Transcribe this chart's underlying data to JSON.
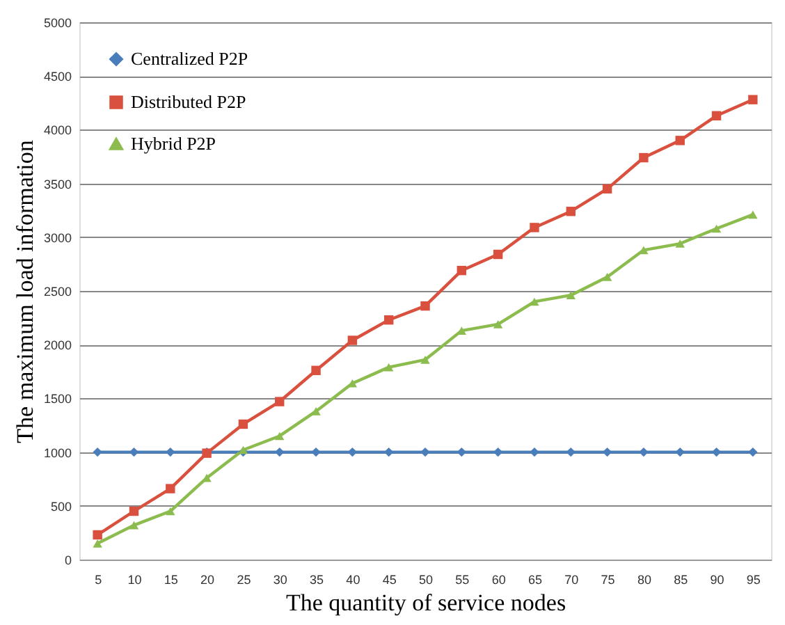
{
  "chart_data": {
    "type": "line",
    "xlabel": "The quantity of service nodes",
    "ylabel": "The maximum load information",
    "categories": [
      "5",
      "10",
      "15",
      "20",
      "25",
      "30",
      "35",
      "40",
      "45",
      "50",
      "55",
      "60",
      "65",
      "70",
      "75",
      "80",
      "85",
      "90",
      "95"
    ],
    "series": [
      {
        "name": "Centralized P2P",
        "color": "#4a7ebb",
        "marker": "diamond",
        "values": [
          1000,
          1000,
          1000,
          1000,
          1000,
          1000,
          1000,
          1000,
          1000,
          1000,
          1000,
          1000,
          1000,
          1000,
          1000,
          1000,
          1000,
          1000,
          1000
        ]
      },
      {
        "name": "Distributed P2P",
        "color": "#d9513e",
        "marker": "square",
        "values": [
          230,
          450,
          660,
          990,
          1260,
          1470,
          1760,
          2040,
          2230,
          2360,
          2690,
          2840,
          3090,
          3240,
          3450,
          3740,
          3900,
          4130,
          4280
        ]
      },
      {
        "name": "Hybrid P2P",
        "color": "#8cbb4e",
        "marker": "triangle",
        "values": [
          150,
          320,
          450,
          760,
          1020,
          1150,
          1380,
          1640,
          1790,
          1860,
          2130,
          2190,
          2400,
          2460,
          2630,
          2880,
          2940,
          3080,
          3210
        ]
      }
    ],
    "ylim": [
      0,
      5000
    ],
    "yticks": [
      0,
      500,
      1000,
      1500,
      2000,
      2500,
      3000,
      3500,
      4000,
      4500,
      5000
    ],
    "grid": "y",
    "legend": "top left"
  }
}
